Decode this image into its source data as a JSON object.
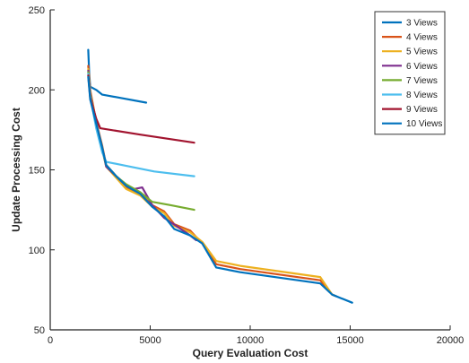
{
  "chart_data": {
    "type": "line",
    "title": "",
    "xlabel": "Query Evaluation Cost",
    "ylabel": "Update Processing Cost",
    "xlim": [
      0,
      20000
    ],
    "ylim": [
      50,
      250
    ],
    "xticks": [
      0,
      5000,
      10000,
      15000,
      20000
    ],
    "yticks": [
      50,
      100,
      150,
      200,
      250
    ],
    "grid": false,
    "legend_position": "top-right",
    "series": [
      {
        "name": "3 Views",
        "color": "#0072BD",
        "points": [
          [
            1900,
            225
          ],
          [
            1950,
            210
          ],
          [
            2000,
            202
          ],
          [
            2300,
            200
          ],
          [
            2600,
            197
          ],
          [
            3500,
            195
          ],
          [
            4800,
            192
          ]
        ]
      },
      {
        "name": "4 Views",
        "color": "#D95319",
        "points": [
          [
            1900,
            215
          ],
          [
            2000,
            200
          ],
          [
            2300,
            180
          ],
          [
            2600,
            165
          ],
          [
            2800,
            153
          ],
          [
            3300,
            146
          ],
          [
            3800,
            139
          ],
          [
            4500,
            135
          ],
          [
            5100,
            128
          ],
          [
            5700,
            124
          ],
          [
            6200,
            116
          ],
          [
            7000,
            112
          ],
          [
            7600,
            104
          ],
          [
            8300,
            91
          ],
          [
            9500,
            88
          ],
          [
            13500,
            81
          ],
          [
            14100,
            72
          ],
          [
            14300,
            71
          ]
        ]
      },
      {
        "name": "5 Views",
        "color": "#EDB120",
        "points": [
          [
            1900,
            213
          ],
          [
            2000,
            199
          ],
          [
            2300,
            179
          ],
          [
            2600,
            164
          ],
          [
            2800,
            152
          ],
          [
            3300,
            145
          ],
          [
            3800,
            138
          ],
          [
            4500,
            134
          ],
          [
            5100,
            127
          ],
          [
            5700,
            123
          ],
          [
            6200,
            115
          ],
          [
            7000,
            111
          ],
          [
            7600,
            105
          ],
          [
            8300,
            93
          ],
          [
            9500,
            90
          ],
          [
            13500,
            83
          ],
          [
            14100,
            72
          ],
          [
            14300,
            71
          ]
        ]
      },
      {
        "name": "6 Views",
        "color": "#7E2F8E",
        "points": [
          [
            1900,
            212
          ],
          [
            2000,
            198
          ],
          [
            2300,
            178
          ],
          [
            2600,
            163
          ],
          [
            2800,
            152
          ],
          [
            3300,
            146
          ],
          [
            3800,
            140
          ],
          [
            4200,
            138
          ],
          [
            4600,
            139
          ],
          [
            5100,
            128
          ],
          [
            5700,
            120
          ],
          [
            6300,
            115
          ],
          [
            7000,
            109
          ],
          [
            7300,
            106
          ]
        ]
      },
      {
        "name": "7 Views",
        "color": "#77AC30",
        "points": [
          [
            1900,
            211
          ],
          [
            2000,
            197
          ],
          [
            2300,
            177
          ],
          [
            2600,
            162
          ],
          [
            2800,
            153
          ],
          [
            3300,
            146
          ],
          [
            3800,
            141
          ],
          [
            4500,
            136
          ],
          [
            5100,
            130
          ],
          [
            6000,
            128
          ],
          [
            7200,
            125
          ]
        ]
      },
      {
        "name": "8 Views",
        "color": "#4DBEEE",
        "points": [
          [
            1900,
            210
          ],
          [
            2000,
            196
          ],
          [
            2300,
            176
          ],
          [
            2600,
            161
          ],
          [
            2800,
            155
          ],
          [
            4000,
            152
          ],
          [
            5200,
            149
          ],
          [
            7200,
            146
          ]
        ]
      },
      {
        "name": "9 Views",
        "color": "#A2142F",
        "points": [
          [
            1900,
            209
          ],
          [
            2000,
            195
          ],
          [
            2300,
            182
          ],
          [
            2500,
            176
          ],
          [
            4500,
            172
          ],
          [
            7200,
            167
          ]
        ]
      },
      {
        "name": "10 Views",
        "color": "#0072BD",
        "points": [
          [
            1900,
            208
          ],
          [
            2000,
            194
          ],
          [
            2300,
            179
          ],
          [
            2600,
            164
          ],
          [
            2800,
            153
          ],
          [
            3300,
            146
          ],
          [
            3800,
            140
          ],
          [
            4500,
            135
          ],
          [
            5100,
            127
          ],
          [
            5700,
            121
          ],
          [
            6200,
            113
          ],
          [
            7000,
            109
          ],
          [
            7600,
            104
          ],
          [
            8300,
            89
          ],
          [
            9500,
            86
          ],
          [
            13500,
            79
          ],
          [
            14100,
            72
          ],
          [
            15100,
            67
          ]
        ]
      }
    ]
  }
}
